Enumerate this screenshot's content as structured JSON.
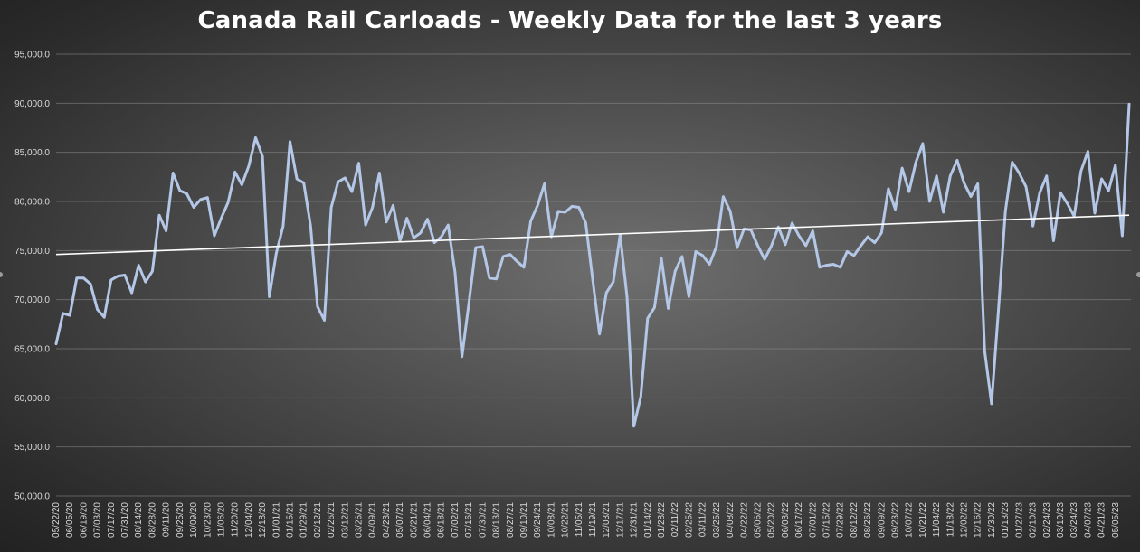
{
  "chart_data": {
    "type": "line",
    "title": "Canada Rail Carloads - Weekly Data for the last 3 years",
    "xlabel": "",
    "ylabel": "",
    "ylim": [
      50000,
      95000
    ],
    "yticks": [
      50000,
      55000,
      60000,
      65000,
      70000,
      75000,
      80000,
      85000,
      90000,
      95000
    ],
    "ytick_labels": [
      "50,000.0",
      "55,000.0",
      "60,000.0",
      "65,000.0",
      "70,000.0",
      "75,000.0",
      "80,000.0",
      "85,000.0",
      "90,000.0",
      "95,000.0"
    ],
    "grid": true,
    "legend": "none",
    "x_tick_labels": [
      "05/22/20",
      "06/05/20",
      "06/19/20",
      "07/03/20",
      "07/17/20",
      "07/31/20",
      "08/14/20",
      "08/28/20",
      "09/11/20",
      "09/25/20",
      "10/09/20",
      "10/23/20",
      "11/06/20",
      "11/20/20",
      "12/04/20",
      "12/18/20",
      "01/01/21",
      "01/15/21",
      "01/29/21",
      "02/12/21",
      "02/26/21",
      "03/12/21",
      "03/26/21",
      "04/09/21",
      "04/23/21",
      "05/07/21",
      "05/21/21",
      "06/04/21",
      "06/18/21",
      "07/02/21",
      "07/16/21",
      "07/30/21",
      "08/13/21",
      "08/27/21",
      "09/10/21",
      "09/24/21",
      "10/08/21",
      "10/22/21",
      "11/05/21",
      "11/19/21",
      "12/03/21",
      "12/17/21",
      "12/31/21",
      "01/14/22",
      "01/28/22",
      "02/11/22",
      "02/25/22",
      "03/11/22",
      "03/25/22",
      "04/08/22",
      "04/22/22",
      "05/06/22",
      "05/20/22",
      "06/03/22",
      "06/17/22",
      "07/01/22",
      "07/15/22",
      "07/29/22",
      "08/12/22",
      "08/26/22",
      "09/09/22",
      "09/23/22",
      "10/07/22",
      "10/21/22",
      "11/04/22",
      "11/18/22",
      "12/02/22",
      "12/16/22",
      "12/30/22",
      "01/13/23",
      "01/27/23",
      "02/10/23",
      "02/24/23",
      "03/10/23",
      "03/24/23",
      "04/07/23",
      "04/21/23",
      "05/05/23"
    ],
    "series": [
      {
        "color": "#b4c7e7",
        "values": [
          65500,
          68600,
          68400,
          72200,
          72200,
          71600,
          69000,
          68200,
          72000,
          72400,
          72500,
          70700,
          73500,
          71800,
          72900,
          78600,
          77000,
          82900,
          81100,
          80800,
          79400,
          80200,
          80400,
          76500,
          78300,
          79900,
          83000,
          81700,
          83600,
          86500,
          84600,
          70300,
          74700,
          77500,
          86100,
          82300,
          81900,
          77500,
          69300,
          67900,
          79400,
          82000,
          82400,
          81000,
          83900,
          77600,
          79400,
          82900,
          77900,
          79600,
          76000,
          78300,
          76300,
          76800,
          78200,
          75800,
          76400,
          77600,
          72800,
          64200,
          69600,
          75300,
          75400,
          72200,
          72100,
          74400,
          74600,
          73900,
          73300,
          78000,
          79600,
          81800,
          76400,
          79000,
          78900,
          79500,
          79400,
          77800,
          72100,
          66500,
          70700,
          71800,
          76600,
          70300,
          57100,
          60100,
          68100,
          69200,
          74200,
          69100,
          72900,
          74400,
          70300,
          74900,
          74500,
          73600,
          75400,
          80500,
          79000,
          75300,
          77200,
          77100,
          75500,
          74100,
          75500,
          77400,
          75600,
          77800,
          76500,
          75500,
          77000,
          73300,
          73500,
          73600,
          73300,
          74900,
          74500,
          75500,
          76400,
          75800,
          76800,
          81300,
          79200,
          83400,
          81000,
          84000,
          85900,
          80000,
          82600,
          78900,
          82600,
          84200,
          81900,
          80500,
          81800,
          64800,
          59400,
          69000,
          79000,
          84000,
          82900,
          81500,
          77500,
          80900,
          82600,
          76000,
          80900,
          79800,
          78500,
          83100,
          85100,
          78800,
          82300,
          81100,
          83700,
          76500,
          89900
        ]
      },
      {
        "color": "#ffffff",
        "values": [
          74600,
          78600
        ]
      }
    ]
  }
}
